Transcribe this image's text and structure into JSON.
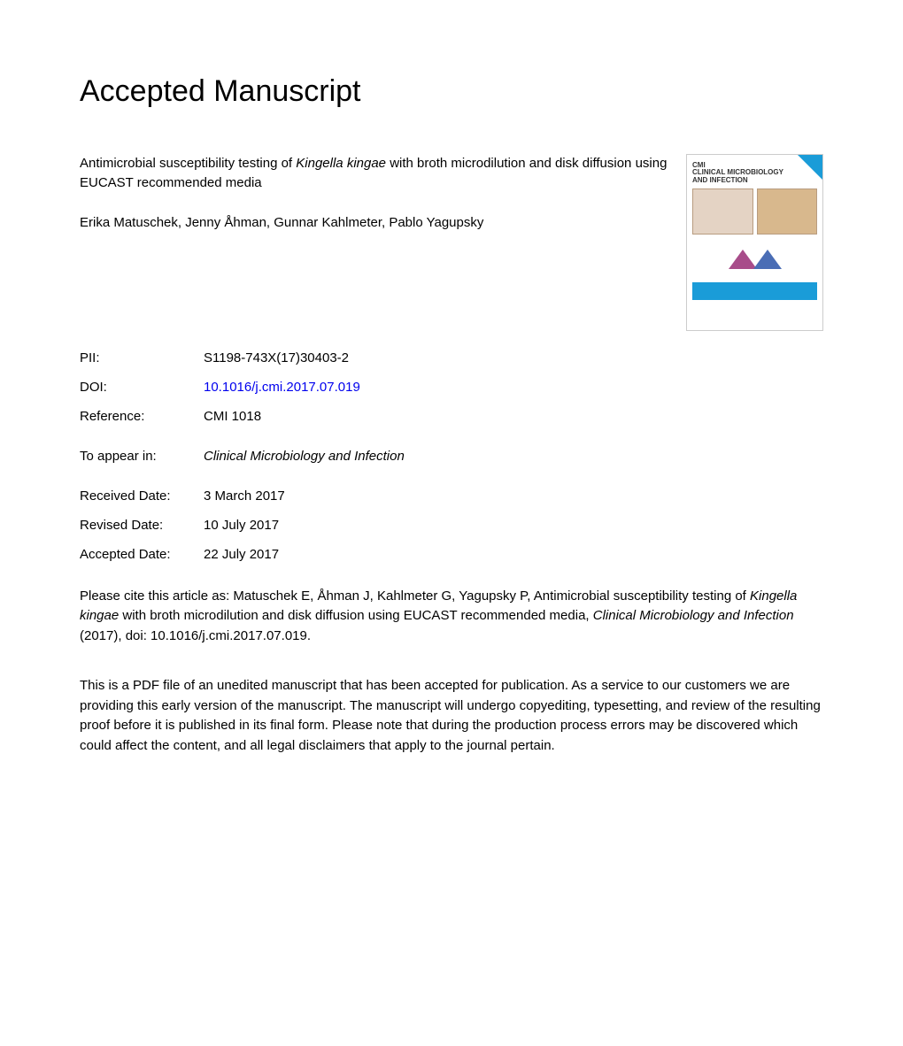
{
  "heading": "Accepted Manuscript",
  "journal_cover": {
    "brand": "CMI",
    "name_line1": "CLINICAL MICROBIOLOGY",
    "name_line2": "AND INFECTION",
    "band_text": "",
    "ribbon_color": "#1a9cd8",
    "band_color": "#1a9cd8",
    "pentagon_left_color": "#a84c8a",
    "pentagon_right_color": "#4a6db5"
  },
  "article": {
    "title_prefix": "Antimicrobial susceptibility testing of ",
    "title_italic": "Kingella kingae",
    "title_suffix": " with broth microdilution and disk diffusion using EUCAST recommended media",
    "authors": "Erika Matuschek, Jenny Åhman, Gunnar Kahlmeter, Pablo Yagupsky"
  },
  "meta": {
    "pii_label": "PII:",
    "pii_value": "S1198-743X(17)30403-2",
    "doi_label": "DOI:",
    "doi_value": "10.1016/j.cmi.2017.07.019",
    "ref_label": "Reference:",
    "ref_value": "CMI 1018",
    "appear_label": "To appear in:",
    "appear_value": "Clinical Microbiology and Infection",
    "received_label": "Received Date:",
    "received_value": "3 March 2017",
    "revised_label": "Revised Date:",
    "revised_value": "10 July 2017",
    "accepted_label": "Accepted Date:",
    "accepted_value": "22 July 2017"
  },
  "citation": {
    "prefix": "Please cite this article as: Matuschek E, Åhman J, Kahlmeter G, Yagupsky P, Antimicrobial susceptibility testing of ",
    "italic1": "Kingella kingae",
    "mid": " with broth microdilution and disk diffusion using EUCAST recommended media, ",
    "italic2": "Clinical Microbiology and Infection",
    "suffix": " (2017), doi: 10.1016/j.cmi.2017.07.019."
  },
  "disclaimer": "This is a PDF file of an unedited manuscript that has been accepted for publication. As a service to our customers we are providing this early version of the manuscript. The manuscript will undergo copyediting, typesetting, and review of the resulting proof before it is published in its final form. Please note that during the production process errors may be discovered which could affect the content, and all legal disclaimers that apply to the journal pertain."
}
